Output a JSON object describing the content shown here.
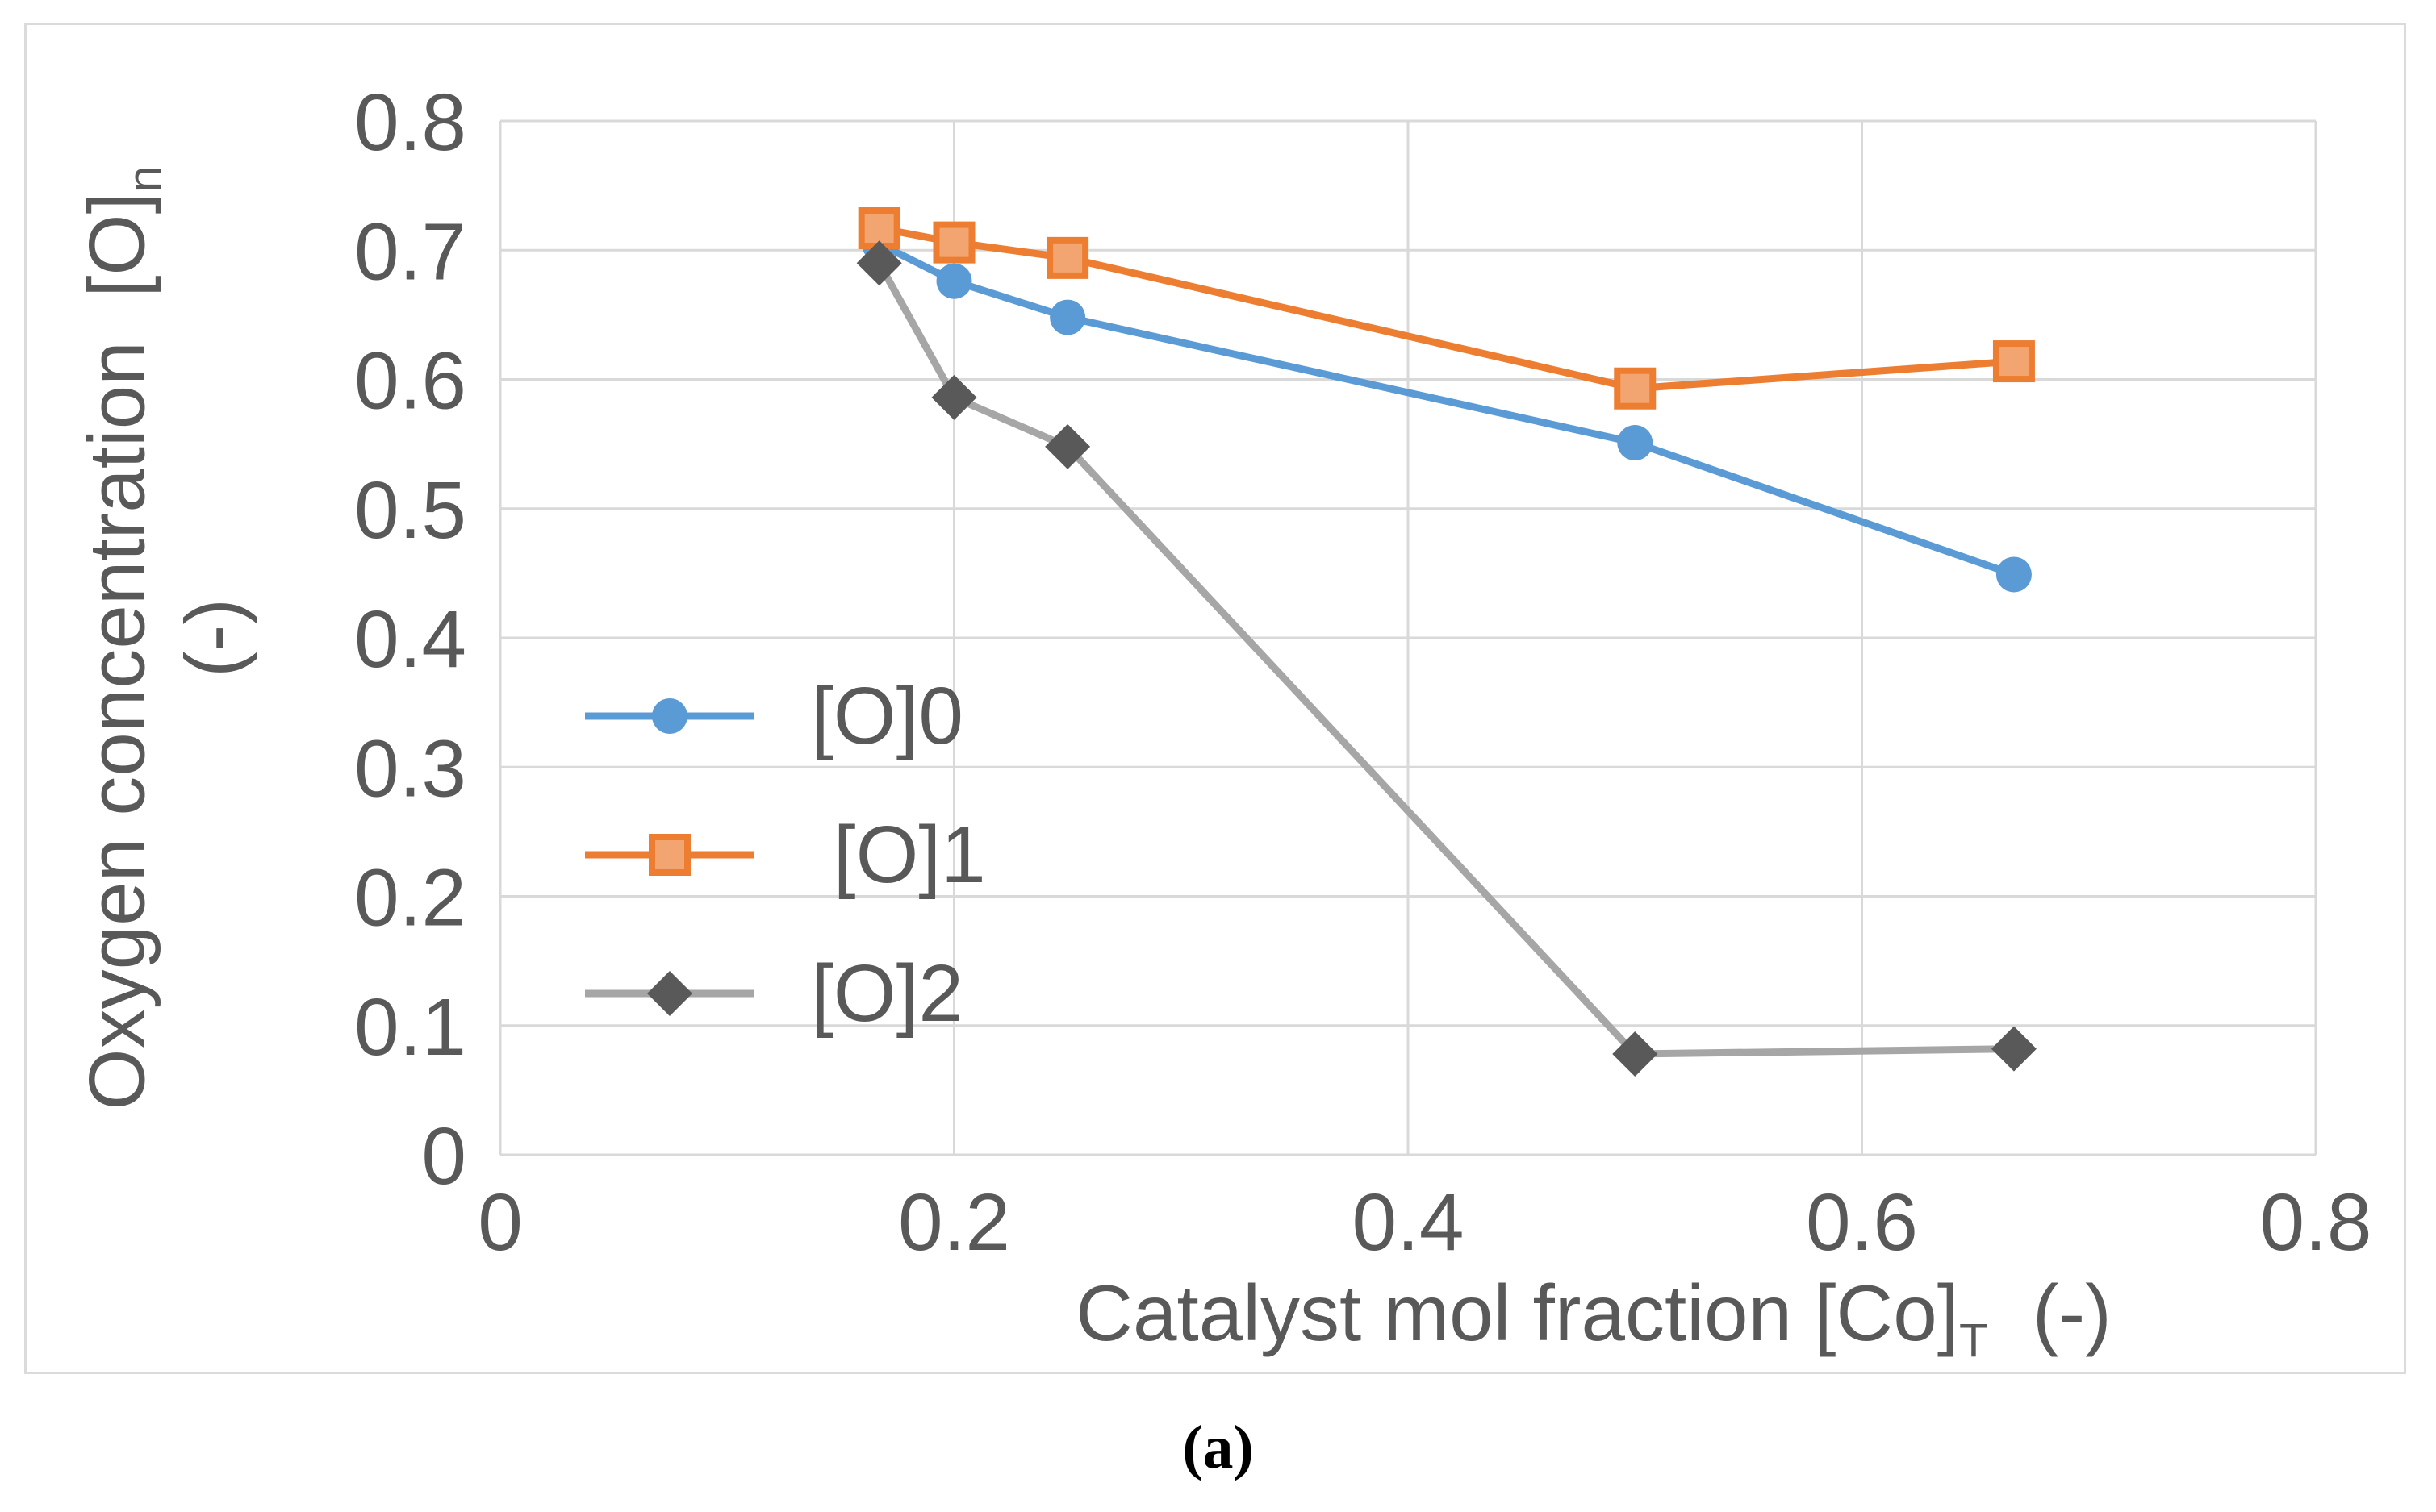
{
  "figure": {
    "caption": "(a)"
  },
  "chart_data": {
    "type": "line",
    "title": "",
    "xlabel": "Catalyst mol fraction [Co]T (-)",
    "ylabel": "Oxygen concentration [O]n (-)",
    "axis_label_parts": {
      "y_main": "Oxygen concentration  [O]",
      "y_sub": "n",
      "y_unit": "(-)",
      "x_main": "Catalyst mol fraction [Co]",
      "x_sub": "T",
      "x_unit": "(-)"
    },
    "xlim": [
      0,
      0.8
    ],
    "ylim": [
      0,
      0.8
    ],
    "x_tick_values": [
      0,
      0.2,
      0.4,
      0.6,
      0.8
    ],
    "x_tick_labels": [
      "0",
      "0.2",
      "0.4",
      "0.6",
      "0.8"
    ],
    "y_tick_values": [
      0,
      0.1,
      0.2,
      0.3,
      0.4,
      0.5,
      0.6,
      0.7,
      0.8
    ],
    "y_tick_labels": [
      "0",
      "0.1",
      "0.2",
      "0.3",
      "0.4",
      "0.5",
      "0.6",
      "0.7",
      "0.8"
    ],
    "grid": true,
    "legend_position": "inside-left",
    "x": [
      0.167,
      0.2,
      0.25,
      0.5,
      0.667
    ],
    "series": [
      {
        "name": "[O]0",
        "legend_label": "[O]0",
        "marker": "circle",
        "line_color": "#5B9BD5",
        "marker_fill": "#5B9BD5",
        "marker_stroke": "#5B9BD5",
        "marker_stroke_width": 0,
        "y": [
          0.705,
          0.676,
          0.648,
          0.551,
          0.449
        ]
      },
      {
        "name": "[O]1",
        "legend_label": " [O]1",
        "marker": "square",
        "line_color": "#ED7D31",
        "marker_fill": "#F2A570",
        "marker_stroke": "#ED7D31",
        "marker_stroke_width": 8,
        "y": [
          0.717,
          0.706,
          0.694,
          0.593,
          0.614
        ]
      },
      {
        "name": "[O]2",
        "legend_label": "[O]2",
        "marker": "diamond",
        "line_color": "#A6A6A6",
        "marker_fill": "#595959",
        "marker_stroke": "#595959",
        "marker_stroke_width": 0,
        "y": [
          0.69,
          0.586,
          0.548,
          0.078,
          0.082
        ]
      }
    ],
    "text_color": "#595959",
    "gridline_color": "#D9D9D9"
  }
}
